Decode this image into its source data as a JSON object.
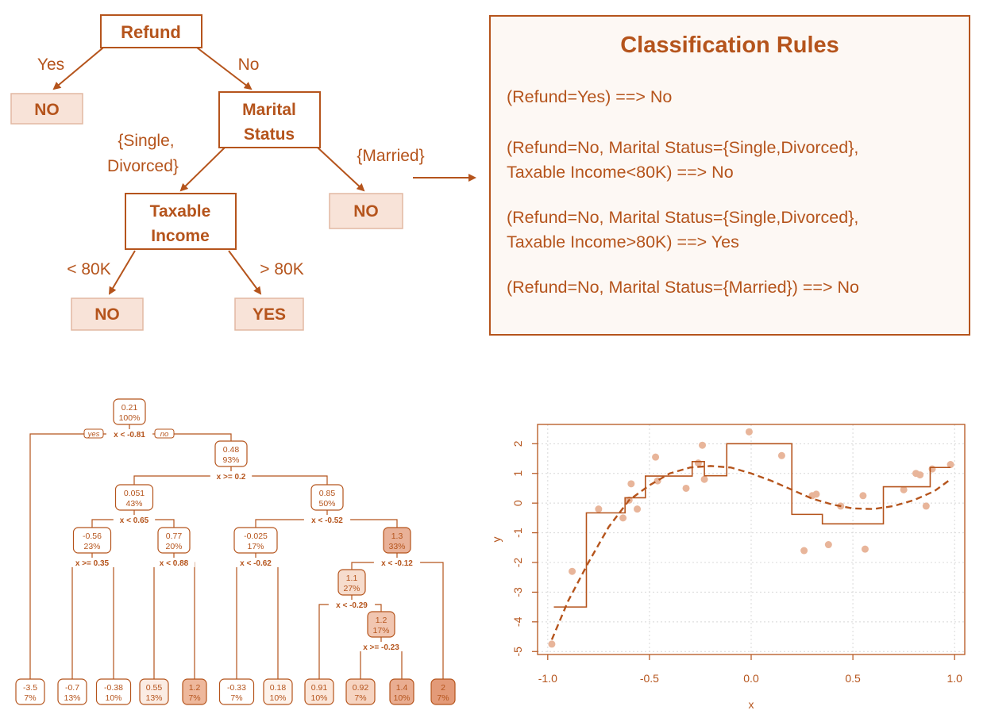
{
  "decision_tree": {
    "root": "Refund",
    "branch_yes": "Yes",
    "branch_no": "No",
    "leaf_refund_yes": "NO",
    "marital_line1": "Marital",
    "marital_line2": "Status",
    "branch_single_line1": "{Single,",
    "branch_single_line2": "Divorced}",
    "branch_married": "{Married}",
    "leaf_married": "NO",
    "income_line1": "Taxable",
    "income_line2": "Income",
    "branch_lt": "< 80K",
    "branch_gt": "> 80K",
    "leaf_lt": "NO",
    "leaf_gt": "YES"
  },
  "rules": {
    "title": "Classification Rules",
    "items": [
      [
        "(Refund=Yes) ==> No"
      ],
      [
        "(Refund=No, Marital Status={Single,Divorced},",
        "Taxable Income<80K) ==> No"
      ],
      [
        "(Refund=No, Marital Status={Single,Divorced},",
        "Taxable Income>80K) ==> Yes"
      ],
      [
        "(Refund=No, Marital Status={Married}) ==> No"
      ]
    ]
  },
  "regression_tree": {
    "yes_label": "yes",
    "no_label": "no",
    "nodes": [
      {
        "id": "n0",
        "value": "0.21",
        "pct": "100%",
        "split": "x < -0.81"
      },
      {
        "id": "n1",
        "value": "0.48",
        "pct": "93%",
        "split": "x >= 0.2"
      },
      {
        "id": "n2",
        "value": "0.051",
        "pct": "43%",
        "split": "x < 0.65"
      },
      {
        "id": "n3",
        "value": "0.85",
        "pct": "50%",
        "split": "x < -0.52"
      },
      {
        "id": "n4",
        "value": "-0.56",
        "pct": "23%",
        "split": "x >= 0.35"
      },
      {
        "id": "n5",
        "value": "0.77",
        "pct": "20%",
        "split": "x < 0.88"
      },
      {
        "id": "n6",
        "value": "-0.025",
        "pct": "17%",
        "split": "x < -0.62"
      },
      {
        "id": "n7",
        "value": "1.3",
        "pct": "33%",
        "split": "x < -0.12"
      },
      {
        "id": "n8",
        "value": "1.1",
        "pct": "27%",
        "split": "x < -0.29"
      },
      {
        "id": "n9",
        "value": "1.2",
        "pct": "17%",
        "split": "x >= -0.23"
      }
    ],
    "leaves": [
      {
        "value": "-3.5",
        "pct": "7%"
      },
      {
        "value": "-0.7",
        "pct": "13%"
      },
      {
        "value": "-0.38",
        "pct": "10%"
      },
      {
        "value": "0.55",
        "pct": "13%"
      },
      {
        "value": "1.2",
        "pct": "7%"
      },
      {
        "value": "-0.33",
        "pct": "7%"
      },
      {
        "value": "0.18",
        "pct": "10%"
      },
      {
        "value": "0.91",
        "pct": "10%"
      },
      {
        "value": "0.92",
        "pct": "7%"
      },
      {
        "value": "1.4",
        "pct": "10%"
      },
      {
        "value": "2",
        "pct": "7%"
      }
    ]
  },
  "chart_data": {
    "type": "scatter",
    "xlabel": "x",
    "ylabel": "y",
    "xlim": [
      -1.05,
      1.05
    ],
    "ylim": [
      -5.1,
      2.65
    ],
    "xticks": [
      "-1.0",
      "-0.5",
      "0.0",
      "0.5",
      "1.0"
    ],
    "yticks": [
      "-5",
      "-4",
      "-3",
      "-2",
      "-1",
      "0",
      "1",
      "2"
    ],
    "grid": true,
    "point_color": "#e8b59a",
    "line_color": "#b5541c",
    "points": [
      [
        -0.98,
        -4.75
      ],
      [
        -0.88,
        -2.3
      ],
      [
        -0.75,
        -0.2
      ],
      [
        -0.63,
        -0.5
      ],
      [
        -0.6,
        0.1
      ],
      [
        -0.59,
        0.65
      ],
      [
        -0.56,
        -0.2
      ],
      [
        -0.47,
        1.55
      ],
      [
        -0.46,
        0.75
      ],
      [
        -0.32,
        0.5
      ],
      [
        -0.26,
        1.35
      ],
      [
        -0.24,
        1.95
      ],
      [
        -0.23,
        0.8
      ],
      [
        -0.01,
        2.4
      ],
      [
        0.15,
        1.6
      ],
      [
        0.26,
        -1.6
      ],
      [
        0.3,
        0.25
      ],
      [
        0.32,
        0.3
      ],
      [
        0.38,
        -1.4
      ],
      [
        0.44,
        -0.1
      ],
      [
        0.55,
        0.25
      ],
      [
        0.56,
        -1.55
      ],
      [
        0.75,
        0.45
      ],
      [
        0.81,
        1.0
      ],
      [
        0.83,
        0.95
      ],
      [
        0.86,
        -0.1
      ],
      [
        0.89,
        1.15
      ],
      [
        0.98,
        1.3
      ]
    ],
    "step_function": [
      [
        -0.97,
        -3.5
      ],
      [
        -0.81,
        -3.5
      ],
      [
        -0.81,
        -0.33
      ],
      [
        -0.62,
        -0.33
      ],
      [
        -0.62,
        0.18
      ],
      [
        -0.52,
        0.18
      ],
      [
        -0.52,
        0.91
      ],
      [
        -0.29,
        0.91
      ],
      [
        -0.29,
        1.4
      ],
      [
        -0.23,
        1.4
      ],
      [
        -0.23,
        0.92
      ],
      [
        -0.12,
        0.92
      ],
      [
        -0.12,
        2.0
      ],
      [
        0.2,
        2.0
      ],
      [
        0.2,
        -0.38
      ],
      [
        0.35,
        -0.38
      ],
      [
        0.35,
        -0.7
      ],
      [
        0.65,
        -0.7
      ],
      [
        0.65,
        0.55
      ],
      [
        0.88,
        0.55
      ],
      [
        0.88,
        1.2
      ],
      [
        0.98,
        1.2
      ]
    ],
    "true_curve": [
      [
        -0.98,
        -4.6
      ],
      [
        -0.9,
        -3.3
      ],
      [
        -0.8,
        -2.0
      ],
      [
        -0.7,
        -0.8
      ],
      [
        -0.6,
        0.1
      ],
      [
        -0.5,
        0.6
      ],
      [
        -0.4,
        1.0
      ],
      [
        -0.3,
        1.2
      ],
      [
        -0.2,
        1.25
      ],
      [
        -0.1,
        1.2
      ],
      [
        0.0,
        1.0
      ],
      [
        0.1,
        0.75
      ],
      [
        0.2,
        0.45
      ],
      [
        0.3,
        0.15
      ],
      [
        0.4,
        -0.05
      ],
      [
        0.5,
        -0.18
      ],
      [
        0.6,
        -0.2
      ],
      [
        0.7,
        -0.1
      ],
      [
        0.8,
        0.1
      ],
      [
        0.9,
        0.4
      ],
      [
        0.98,
        0.8
      ]
    ]
  }
}
